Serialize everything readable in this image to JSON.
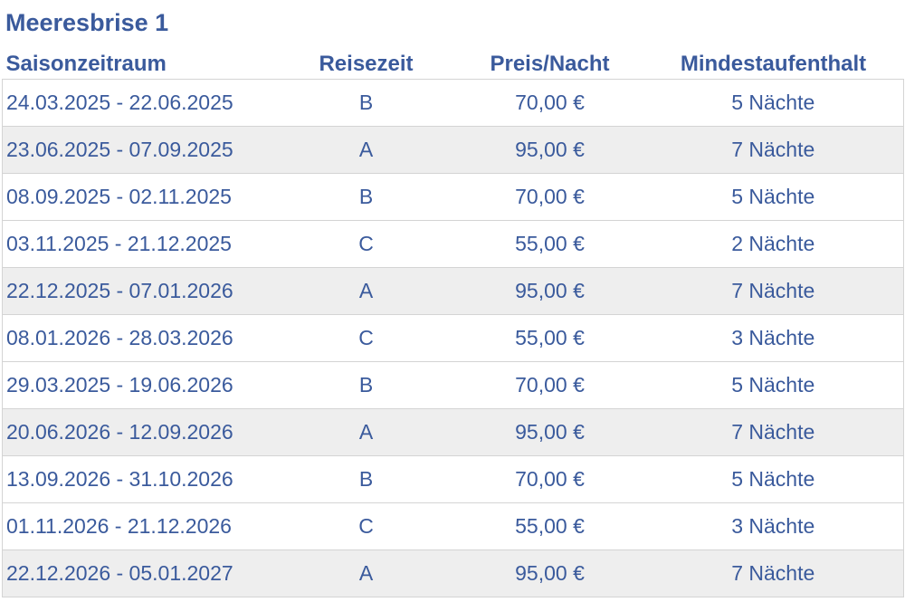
{
  "title": "Meeresbrise 1",
  "table": {
    "headers": [
      "Saisonzeitraum",
      "Reisezeit",
      "Preis/Nacht",
      "Mindestaufenthalt"
    ],
    "rows": [
      [
        "24.03.2025 - 22.06.2025",
        "B",
        "70,00 €",
        "5 Nächte"
      ],
      [
        "23.06.2025 - 07.09.2025",
        "A",
        "95,00 €",
        "7 Nächte"
      ],
      [
        "08.09.2025 - 02.11.2025",
        "B",
        "70,00 €",
        "5 Nächte"
      ],
      [
        "03.11.2025 - 21.12.2025",
        "C",
        "55,00 €",
        "2 Nächte"
      ],
      [
        "22.12.2025 - 07.01.2026",
        "A",
        "95,00 €",
        "7 Nächte"
      ],
      [
        "08.01.2026 - 28.03.2026",
        "C",
        "55,00 €",
        "3 Nächte"
      ],
      [
        "29.03.2025 - 19.06.2026",
        "B",
        "70,00 €",
        "5 Nächte"
      ],
      [
        "20.06.2026 - 12.09.2026",
        "A",
        "95,00 €",
        "7 Nächte"
      ],
      [
        "13.09.2026 - 31.10.2026",
        "B",
        "70,00 €",
        "5 Nächte"
      ],
      [
        "01.11.2026 - 21.12.2026",
        "C",
        "55,00 €",
        "3 Nächte"
      ],
      [
        "22.12.2026 - 05.01.2027",
        "A",
        "95,00 €",
        "7 Nächte"
      ]
    ]
  },
  "colors": {
    "text": "#3a5a9c",
    "row_alt_background": "#eeeeee",
    "border": "#d4d4d4"
  }
}
